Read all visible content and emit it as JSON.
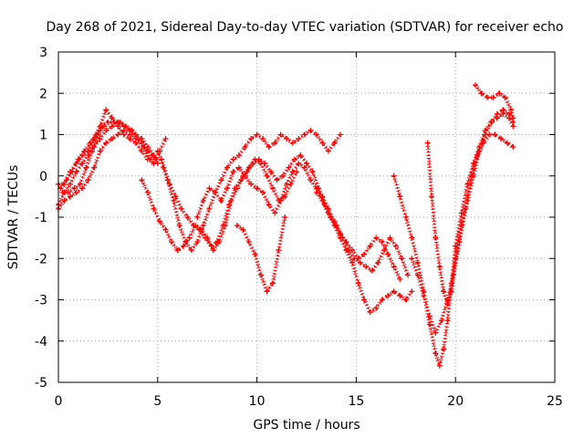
{
  "chart_data": {
    "type": "scatter",
    "title": "Day 268 of 2021, Sidereal Day-to-day VTEC variation (SDTVAR) for receiver echo",
    "xlabel": "GPS time / hours",
    "ylabel": "SDTVAR / TECUs",
    "xlim": [
      0,
      25
    ],
    "ylim": [
      -5,
      3
    ],
    "xticks": [
      0,
      5,
      10,
      15,
      20,
      25
    ],
    "yticks": [
      -5,
      -4,
      -3,
      -2,
      -1,
      0,
      1,
      2,
      3
    ],
    "xtick_labels": [
      "0",
      "5",
      "10",
      "15",
      "20",
      "25"
    ],
    "ytick_labels": [
      "-5",
      "-4",
      "-3",
      "-2",
      "-1",
      "0",
      "1",
      "2",
      "3"
    ],
    "grid": true,
    "marker": "+",
    "color": "#ff0000",
    "series": [
      {
        "x": [
          0.0,
          0.3,
          0.6,
          0.9,
          1.2,
          1.5,
          1.8,
          2.1,
          2.4,
          2.7,
          3.0,
          3.3,
          3.6,
          3.9,
          4.2,
          4.5,
          4.7,
          4.9,
          5.1,
          5.4
        ],
        "y": [
          -0.8,
          -0.6,
          -0.5,
          -0.4,
          -0.3,
          -0.1,
          0.2,
          0.6,
          0.8,
          0.9,
          1.0,
          1.1,
          1.0,
          0.9,
          0.8,
          0.6,
          0.5,
          0.4,
          0.6,
          0.9
        ]
      },
      {
        "x": [
          0.0,
          0.3,
          0.6,
          0.9,
          1.2,
          1.5,
          1.8,
          2.1,
          2.4,
          2.7,
          3.0,
          3.3,
          3.6,
          3.9,
          4.2,
          4.5,
          4.8,
          5.0
        ],
        "y": [
          -0.7,
          -0.4,
          -0.2,
          0.1,
          0.3,
          0.5,
          0.7,
          0.9,
          1.1,
          1.2,
          1.3,
          1.2,
          1.1,
          1.0,
          0.9,
          0.7,
          0.5,
          0.3
        ]
      },
      {
        "x": [
          0.1,
          0.4,
          0.7,
          1.0,
          1.3,
          1.6,
          1.9,
          2.2,
          2.5,
          2.8,
          3.1,
          3.4,
          3.7,
          4.0,
          4.3,
          4.6,
          4.8
        ],
        "y": [
          -0.3,
          -0.1,
          0.1,
          0.4,
          0.6,
          0.8,
          1.0,
          1.2,
          1.3,
          1.3,
          1.3,
          1.2,
          1.1,
          0.9,
          0.7,
          0.4,
          0.3
        ]
      },
      {
        "x": [
          0.0,
          0.3,
          0.6,
          0.9,
          1.2,
          1.5,
          1.8,
          2.1,
          2.4,
          2.7,
          3.0,
          3.3,
          3.6,
          3.9,
          4.2,
          4.5
        ],
        "y": [
          -0.2,
          -0.2,
          0.1,
          0.3,
          0.5,
          0.6,
          0.9,
          1.2,
          1.6,
          1.4,
          1.2,
          1.0,
          0.9,
          0.8,
          0.6,
          0.4
        ]
      },
      {
        "x": [
          0.2,
          0.5,
          0.8,
          1.1,
          1.4,
          1.7,
          2.0,
          2.3
        ],
        "y": [
          -0.4,
          -0.4,
          -0.3,
          -0.2,
          0.2,
          0.6,
          1.0,
          1.2
        ]
      },
      {
        "x": [
          5.2,
          5.5,
          5.8,
          6.1,
          6.4,
          6.7,
          7.0,
          7.3,
          7.6,
          7.9,
          8.2,
          8.5,
          8.8,
          9.1,
          9.4,
          9.7,
          10.0,
          10.3,
          10.6,
          10.9,
          11.2,
          11.5,
          11.8,
          12.1,
          12.4,
          12.7,
          13.0,
          13.3,
          13.6,
          13.9,
          14.2
        ],
        "y": [
          0.4,
          -0.1,
          -0.6,
          -1.2,
          -1.6,
          -1.8,
          -1.6,
          -1.2,
          -0.8,
          -0.4,
          -0.1,
          0.2,
          0.4,
          0.5,
          0.7,
          0.9,
          1.0,
          0.9,
          0.7,
          0.8,
          1.0,
          0.9,
          0.8,
          0.9,
          1.0,
          1.1,
          1.0,
          0.8,
          0.6,
          0.8,
          1.0
        ]
      },
      {
        "x": [
          4.2,
          4.5,
          4.8,
          5.1,
          5.4,
          5.7,
          6.0,
          6.3,
          6.6,
          6.9,
          7.2,
          7.5,
          7.8,
          8.1,
          8.4,
          8.7,
          9.0,
          9.3,
          9.6,
          9.9,
          10.2,
          10.5,
          10.8,
          11.1,
          11.4,
          11.7,
          12.0
        ],
        "y": [
          -0.1,
          -0.4,
          -0.8,
          -1.1,
          -1.3,
          -1.6,
          -1.8,
          -1.7,
          -1.5,
          -1.2,
          -1.3,
          -1.5,
          -1.8,
          -1.6,
          -1.2,
          -0.6,
          -0.3,
          0.0,
          0.2,
          0.4,
          0.3,
          0.0,
          -0.3,
          -0.6,
          -0.5,
          -0.2,
          0.1
        ]
      },
      {
        "x": [
          5.0,
          5.3,
          5.6,
          5.9,
          6.2,
          6.5,
          6.8,
          7.1,
          7.4,
          7.7,
          8.0,
          8.3,
          8.6,
          8.9,
          9.2,
          9.5,
          9.8,
          10.1,
          10.4,
          10.7,
          11.0,
          11.3,
          11.6,
          11.9,
          12.2,
          12.5,
          12.8,
          13.1,
          13.4,
          13.7,
          14.0,
          14.3,
          14.6,
          14.9,
          15.2,
          15.5,
          15.8,
          16.1,
          16.4,
          16.7,
          17.0,
          17.3,
          17.6
        ],
        "y": [
          0.6,
          0.2,
          -0.2,
          -0.5,
          -0.8,
          -1.0,
          -1.2,
          -1.3,
          -1.5,
          -1.7,
          -1.6,
          -1.2,
          -0.7,
          -0.3,
          -0.1,
          0.1,
          0.3,
          0.4,
          0.3,
          0.1,
          -0.1,
          0.0,
          0.2,
          0.4,
          0.5,
          0.3,
          0.1,
          -0.3,
          -0.7,
          -1.0,
          -1.2,
          -1.5,
          -1.8,
          -2.0,
          -2.1,
          -2.2,
          -2.3,
          -2.1,
          -1.8,
          -1.5,
          -1.7,
          -2.0,
          -2.4
        ]
      },
      {
        "x": [
          7.0,
          7.3,
          7.6,
          7.9,
          8.2,
          8.5,
          8.8,
          9.1,
          9.4,
          9.7,
          10.0,
          10.3,
          10.6,
          10.9,
          11.2,
          11.5,
          11.8,
          12.1,
          12.4,
          12.7,
          13.0,
          13.3,
          13.6,
          13.9,
          14.2,
          14.5,
          14.8,
          15.1,
          15.4,
          15.7,
          16.0,
          16.3,
          16.6,
          16.9,
          17.2
        ],
        "y": [
          -1.0,
          -0.6,
          -0.3,
          -0.4,
          -0.6,
          -0.3,
          0.1,
          0.2,
          0.0,
          -0.2,
          -0.3,
          -0.4,
          -0.7,
          -0.9,
          -0.6,
          -0.2,
          0.1,
          0.3,
          0.2,
          -0.1,
          -0.3,
          -0.5,
          -0.8,
          -1.1,
          -1.4,
          -1.6,
          -1.8,
          -2.0,
          -1.9,
          -1.7,
          -1.5,
          -1.6,
          -1.9,
          -2.2,
          -2.5
        ]
      },
      {
        "x": [
          9.0,
          9.3,
          9.6,
          9.9,
          10.2,
          10.5,
          10.8,
          11.1,
          11.4
        ],
        "y": [
          -1.2,
          -1.3,
          -1.6,
          -1.9,
          -2.4,
          -2.8,
          -2.6,
          -1.8,
          -1.0
        ]
      },
      {
        "x": [
          13.0,
          13.3,
          13.6,
          13.9,
          14.2,
          14.5,
          14.8,
          15.1,
          15.4,
          15.7,
          16.0,
          16.3,
          16.6,
          16.9,
          17.2,
          17.5,
          17.8
        ],
        "y": [
          -0.4,
          -0.6,
          -0.9,
          -1.2,
          -1.5,
          -1.8,
          -2.1,
          -2.6,
          -3.0,
          -3.3,
          -3.2,
          -3.0,
          -2.9,
          -2.8,
          -2.9,
          -3.0,
          -2.8
        ]
      },
      {
        "x": [
          16.9,
          17.2,
          17.5,
          17.8,
          18.1,
          18.4,
          18.7,
          19.0,
          19.2,
          19.4,
          19.6,
          19.8,
          20.0,
          20.3,
          20.6,
          20.9,
          21.2,
          21.5,
          21.8,
          22.1,
          22.4,
          22.7,
          22.9
        ],
        "y": [
          0.0,
          -0.5,
          -1.0,
          -1.5,
          -2.1,
          -2.8,
          -3.6,
          -4.3,
          -4.6,
          -4.2,
          -3.5,
          -2.6,
          -1.7,
          -0.9,
          -0.2,
          0.3,
          0.7,
          1.1,
          1.3,
          1.4,
          1.5,
          1.4,
          1.2
        ]
      },
      {
        "x": [
          18.6,
          18.8,
          19.0,
          19.2,
          19.4,
          19.6,
          19.8,
          20.0,
          20.3,
          20.6,
          20.9,
          21.2,
          21.5,
          21.8,
          22.1,
          22.4,
          22.7,
          22.9
        ],
        "y": [
          0.8,
          -0.5,
          -1.5,
          -2.2,
          -2.8,
          -3.1,
          -2.8,
          -2.0,
          -1.2,
          -0.6,
          0.0,
          0.6,
          1.0,
          1.3,
          1.5,
          1.6,
          1.5,
          1.3
        ]
      },
      {
        "x": [
          17.8,
          18.1,
          18.4,
          18.7,
          19.0,
          19.3,
          19.6,
          19.9,
          20.2,
          20.5,
          20.8,
          21.1,
          21.4,
          21.7,
          22.0,
          22.3,
          22.6,
          22.9
        ],
        "y": [
          -2.0,
          -2.4,
          -2.9,
          -3.4,
          -3.8,
          -3.5,
          -3.0,
          -2.4,
          -1.6,
          -0.8,
          0.0,
          0.5,
          0.8,
          1.0,
          1.0,
          0.9,
          0.8,
          0.7
        ]
      },
      {
        "x": [
          21.0,
          21.3,
          21.6,
          21.9,
          22.2,
          22.5,
          22.8,
          22.9
        ],
        "y": [
          2.2,
          2.0,
          1.9,
          1.9,
          2.0,
          1.9,
          1.6,
          1.4
        ]
      }
    ]
  }
}
